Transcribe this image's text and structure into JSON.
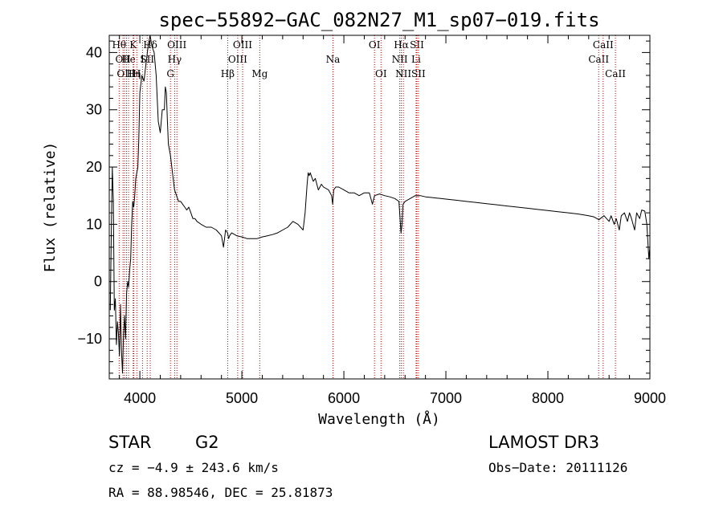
{
  "chart_data": {
    "type": "line",
    "title": "spec−55892−GAC_082N27_M1_sp07−019.fits",
    "xlabel": "Wavelength (Å)",
    "ylabel": "Flux (relative)",
    "xlim": [
      3700,
      9000
    ],
    "ylim": [
      -17,
      43
    ],
    "grid": false,
    "xticks": [
      {
        "v": 4000,
        "label": "4000"
      },
      {
        "v": 5000,
        "label": "5000"
      },
      {
        "v": 6000,
        "label": "6000"
      },
      {
        "v": 7000,
        "label": "7000"
      },
      {
        "v": 8000,
        "label": "8000"
      },
      {
        "v": 9000,
        "label": "9000"
      }
    ],
    "yticks": [
      {
        "v": -10,
        "label": "−10"
      },
      {
        "v": 0,
        "label": "0"
      },
      {
        "v": 10,
        "label": "10"
      },
      {
        "v": 20,
        "label": "20"
      },
      {
        "v": 30,
        "label": "30"
      },
      {
        "v": 40,
        "label": "40"
      }
    ],
    "series": [
      {
        "x": [
          3710,
          3720,
          3730,
          3740,
          3750,
          3760,
          3770,
          3780,
          3790,
          3800,
          3810,
          3820,
          3830,
          3840,
          3850,
          3860,
          3870,
          3880,
          3890,
          3900,
          3910,
          3920,
          3930,
          3940,
          3950,
          3960,
          3970,
          3980,
          3990,
          4000,
          4020,
          4040,
          4060,
          4080,
          4100,
          4120,
          4140,
          4160,
          4180,
          4200,
          4220,
          4240,
          4250,
          4260,
          4270,
          4280,
          4300,
          4320,
          4340,
          4360,
          4380,
          4400,
          4420,
          4440,
          4460,
          4480,
          4500,
          4520,
          4540,
          4560,
          4600,
          4650,
          4700,
          4750,
          4800,
          4820,
          4840,
          4860,
          4870,
          4880,
          4900,
          4950,
          5000,
          5050,
          5100,
          5150,
          5200,
          5250,
          5300,
          5350,
          5400,
          5450,
          5500,
          5550,
          5600,
          5620,
          5640,
          5650,
          5660,
          5670,
          5680,
          5700,
          5720,
          5750,
          5780,
          5800,
          5850,
          5880,
          5890,
          5900,
          5920,
          5950,
          6000,
          6050,
          6100,
          6150,
          6200,
          6250,
          6280,
          6300,
          6350,
          6400,
          6450,
          6500,
          6540,
          6560,
          6570,
          6580,
          6600,
          6650,
          6700,
          6750,
          6800,
          6850,
          6900,
          6950,
          7000,
          7100,
          7200,
          7300,
          7400,
          7500,
          7600,
          7700,
          7800,
          7900,
          8000,
          8100,
          8200,
          8300,
          8400,
          8450,
          8500,
          8550,
          8600,
          8620,
          8650,
          8670,
          8700,
          8720,
          8750,
          8780,
          8800,
          8820,
          8850,
          8870,
          8900,
          8920,
          8950,
          8970,
          8990,
          9000
        ],
        "y": [
          -5,
          8,
          20,
          14,
          -5,
          -3,
          -11,
          -7,
          -9,
          -13,
          -4,
          -12,
          -16,
          -9,
          -6,
          -10,
          -2,
          0,
          -1,
          2,
          4,
          10,
          14,
          13,
          15,
          18,
          19,
          20,
          25,
          33,
          36,
          35,
          38,
          41,
          43,
          41,
          40,
          36,
          28,
          26,
          30,
          30,
          34,
          33,
          28,
          24,
          22,
          19,
          16,
          15,
          14,
          14,
          13.5,
          13,
          12.5,
          13,
          12,
          11,
          11,
          10.5,
          10,
          9.5,
          9.5,
          9,
          8,
          6,
          9,
          8.5,
          7.5,
          8,
          8.5,
          8,
          7.8,
          7.5,
          7.5,
          7.5,
          7.8,
          8,
          8.2,
          8.5,
          9,
          9.5,
          10.5,
          10,
          9,
          12,
          17,
          19,
          18.5,
          19,
          18.5,
          17.5,
          18,
          16,
          17,
          16.5,
          16,
          15,
          13.5,
          16,
          16.5,
          16.5,
          16,
          15.5,
          15.5,
          15,
          15.5,
          15.5,
          13.5,
          15,
          15.3,
          15,
          14.8,
          14.5,
          14,
          8.5,
          10,
          13.5,
          14,
          14.5,
          15,
          15,
          14.8,
          14.7,
          14.6,
          14.5,
          14.4,
          14.2,
          14,
          13.8,
          13.6,
          13.4,
          13.2,
          13,
          12.8,
          12.6,
          12.4,
          12.2,
          12,
          11.8,
          11.5,
          11.3,
          10.8,
          11.5,
          10.5,
          11.5,
          10,
          11,
          9,
          11.5,
          12,
          10.5,
          12,
          11,
          9,
          12,
          11,
          12.5,
          12.3,
          10,
          4,
          6
        ]
      }
    ],
    "lines": [
      {
        "x": 3797,
        "row": 0,
        "label": "Hθ"
      },
      {
        "x": 3835,
        "row": 1,
        "label": "OII"
      },
      {
        "x": 3850,
        "row": 0,
        "label": ""
      },
      {
        "x": 3869,
        "row": 2,
        "label": "OIII"
      },
      {
        "x": 3889,
        "row": 1,
        "label": "He"
      },
      {
        "x": 3934,
        "row": 0,
        "label": "K"
      },
      {
        "x": 3940,
        "row": 2,
        "label": "Hη"
      },
      {
        "x": 3970,
        "row": 2,
        "label": "H"
      },
      {
        "x": 4026,
        "row": 1,
        "label": "I"
      },
      {
        "x": 4072,
        "row": 1,
        "label": "SII"
      },
      {
        "x": 4102,
        "row": 0,
        "label": "Hδ"
      },
      {
        "x": 4300,
        "row": 2,
        "label": "G"
      },
      {
        "x": 4341,
        "row": 1,
        "label": "Hγ"
      },
      {
        "x": 4363,
        "row": 0,
        "label": "OIII"
      },
      {
        "x": 4861,
        "row": 2,
        "label": "Hβ"
      },
      {
        "x": 4959,
        "row": 1,
        "label": "OIII"
      },
      {
        "x": 5007,
        "row": 0,
        "label": "OIII"
      },
      {
        "x": 5175,
        "row": 2,
        "label": "Mg"
      },
      {
        "x": 5893,
        "row": 1,
        "label": "Na"
      },
      {
        "x": 6300,
        "row": 0,
        "label": "OI"
      },
      {
        "x": 6364,
        "row": 2,
        "label": "OI"
      },
      {
        "x": 6548,
        "row": 1,
        "label": "NII"
      },
      {
        "x": 6563,
        "row": 0,
        "label": "Hα"
      },
      {
        "x": 6583,
        "row": 2,
        "label": "NII"
      },
      {
        "x": 6708,
        "row": 1,
        "label": "Li"
      },
      {
        "x": 6716,
        "row": 0,
        "label": "SII"
      },
      {
        "x": 6731,
        "row": 2,
        "label": "SII"
      },
      {
        "x": 8498,
        "row": 1,
        "label": "CaII"
      },
      {
        "x": 8542,
        "row": 0,
        "label": "CaII"
      },
      {
        "x": 8662,
        "row": 2,
        "label": "CaII"
      }
    ]
  },
  "footer": {
    "objtype": "STAR",
    "subclass": "G2",
    "cz": "cz = −4.9 ± 243.6 km/s",
    "radec": "RA =  88.98546, DEC =  25.81873",
    "survey": "LAMOST DR3",
    "obsdate": "Obs−Date: 20111126"
  },
  "colors": {
    "lines": "#c00000",
    "spectrum": "#000000",
    "axes": "#000000"
  }
}
